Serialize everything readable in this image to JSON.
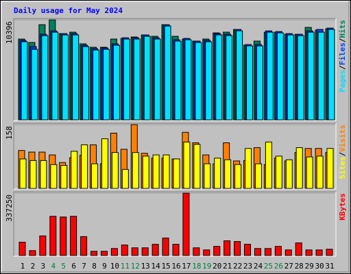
{
  "chart_data": [
    {
      "type": "bar",
      "title": "Daily usage for May 2024",
      "title_color": "#0000ff",
      "ylim": [
        0,
        10396
      ],
      "yticks": [
        10396
      ],
      "legend_separator": "/",
      "series": [
        {
          "name": "Hits",
          "color": "#00805c",
          "values": [
            8402,
            8046,
            9897,
            10396,
            8972,
            9114,
            7904,
            7548,
            7548,
            8402,
            8473,
            8616,
            8829,
            8687,
            9897,
            8687,
            8402,
            8189,
            8402,
            9043,
            9114,
            9399,
            7761,
            8189,
            9114,
            9114,
            8901,
            8901,
            9613,
            9328,
            9470
          ]
        },
        {
          "name": "Files",
          "color": "#0040ff",
          "values": [
            8260,
            7620,
            8900,
            9250,
            8970,
            8970,
            7760,
            7400,
            7480,
            7900,
            8540,
            8540,
            8830,
            8540,
            9890,
            8330,
            8470,
            8190,
            8260,
            8970,
            8900,
            9400,
            7830,
            7830,
            9250,
            9180,
            8970,
            8900,
            9250,
            9400,
            9540
          ]
        },
        {
          "name": "Pages",
          "color": "#00e0ff",
          "values": [
            8117,
            7334,
            8758,
            9114,
            8829,
            8829,
            7619,
            7263,
            7334,
            7761,
            8402,
            8402,
            8687,
            8402,
            9755,
            8189,
            8331,
            8046,
            8117,
            8829,
            8758,
            9257,
            7690,
            7690,
            9114,
            9043,
            8829,
            8758,
            9114,
            9114,
            9399
          ]
        }
      ]
    },
    {
      "type": "bar",
      "ylim": [
        0,
        158
      ],
      "yticks": [
        158
      ],
      "legend_separator": "/",
      "series": [
        {
          "name": "Visits",
          "color": "#ff8000",
          "values": [
            94,
            90,
            90,
            83,
            64,
            76,
            82,
            108,
            61,
            137,
            97,
            158,
            87,
            75,
            75,
            73,
            139,
            113,
            83,
            61,
            113,
            68,
            69,
            101,
            59,
            75,
            68,
            89,
            99,
            99,
            89
          ]
        },
        {
          "name": "Sites",
          "color": "#ffff00",
          "values": [
            73,
            69,
            69,
            59,
            57,
            92,
            108,
            61,
            123,
            89,
            47,
            89,
            80,
            83,
            83,
            73,
            115,
            109,
            61,
            75,
            71,
            59,
            99,
            61,
            115,
            80,
            71,
            101,
            78,
            80,
            99
          ]
        }
      ]
    },
    {
      "type": "bar",
      "ylim": [
        0,
        337250
      ],
      "yticks": [
        337250
      ],
      "categories": [
        "1",
        "2",
        "3",
        "4",
        "5",
        "6",
        "7",
        "8",
        "9",
        "10",
        "11",
        "12",
        "13",
        "14",
        "15",
        "16",
        "17",
        "18",
        "19",
        "20",
        "21",
        "22",
        "23",
        "24",
        "25",
        "26",
        "27",
        "28",
        "29",
        "30",
        "31"
      ],
      "category_colors": [
        "#000000",
        "#000000",
        "#000000",
        "#008040",
        "#008040",
        "#000000",
        "#000000",
        "#000000",
        "#000000",
        "#000000",
        "#008040",
        "#008040",
        "#000000",
        "#000000",
        "#000000",
        "#000000",
        "#000000",
        "#008040",
        "#008040",
        "#000000",
        "#000000",
        "#000000",
        "#000000",
        "#000000",
        "#008040",
        "#008040",
        "#000000",
        "#000000",
        "#000000",
        "#000000",
        "#000000"
      ],
      "series": [
        {
          "name": "KBytes",
          "color": "#ff0000",
          "values": [
            72000,
            26500,
            106100,
            212200,
            208400,
            212200,
            102300,
            22700,
            22700,
            37900,
            56800,
            41700,
            41700,
            60600,
            94700,
            60600,
            337250,
            41700,
            30300,
            49300,
            79600,
            75800,
            60600,
            37900,
            37900,
            49300,
            30300,
            68200,
            30300,
            30300,
            34100
          ]
        }
      ]
    }
  ]
}
